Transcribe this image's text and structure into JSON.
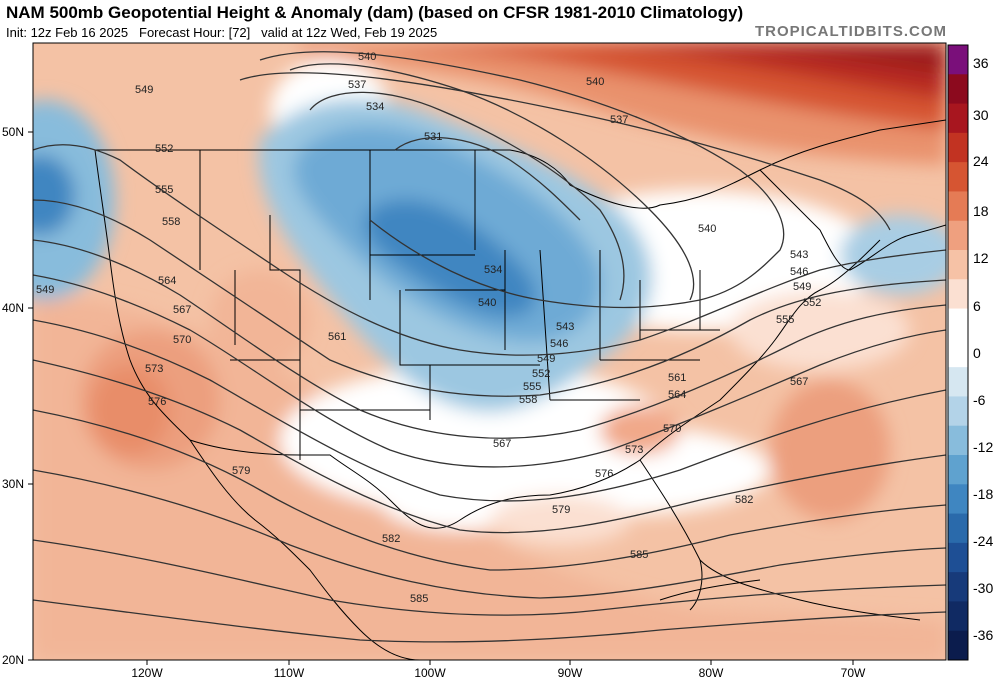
{
  "header": {
    "title": "NAM 500mb Geopotential Height & Anomaly (dam) (based on CFSR 1981-2010 Climatology)",
    "init": "Init: 12z Feb 16 2025",
    "forecast_hour": "Forecast Hour: [72]",
    "valid": "valid at 12z Wed, Feb 19 2025",
    "brand": "TROPICALTIDBITS.COM"
  },
  "axes": {
    "lat_labels": [
      "50N",
      "40N",
      "30N",
      "20N"
    ],
    "lon_labels": [
      "120W",
      "110W",
      "100W",
      "90W",
      "80W",
      "70W"
    ]
  },
  "colorbar": {
    "labels": [
      "36",
      "30",
      "24",
      "18",
      "12",
      "6",
      "0",
      "-6",
      "-12",
      "-18",
      "-24",
      "-30",
      "-36"
    ],
    "colors": [
      "#7a0f7a",
      "#8c0a1e",
      "#a8161f",
      "#c23322",
      "#d65532",
      "#e57b55",
      "#efa07f",
      "#f6c2a6",
      "#fbe0d2",
      "#ffffff",
      "#ffffff",
      "#d6e7f1",
      "#b3d3e8",
      "#88bcdc",
      "#5fa2cf",
      "#3f86c1",
      "#2a6aab",
      "#1e4f95",
      "#173a7a",
      "#102a63",
      "#0b1c4d"
    ]
  },
  "contours": {
    "labels": [
      "531",
      "534",
      "537",
      "540",
      "543",
      "546",
      "549",
      "552",
      "555",
      "558",
      "561",
      "564",
      "567",
      "570",
      "573",
      "576",
      "579",
      "582",
      "585"
    ]
  }
}
